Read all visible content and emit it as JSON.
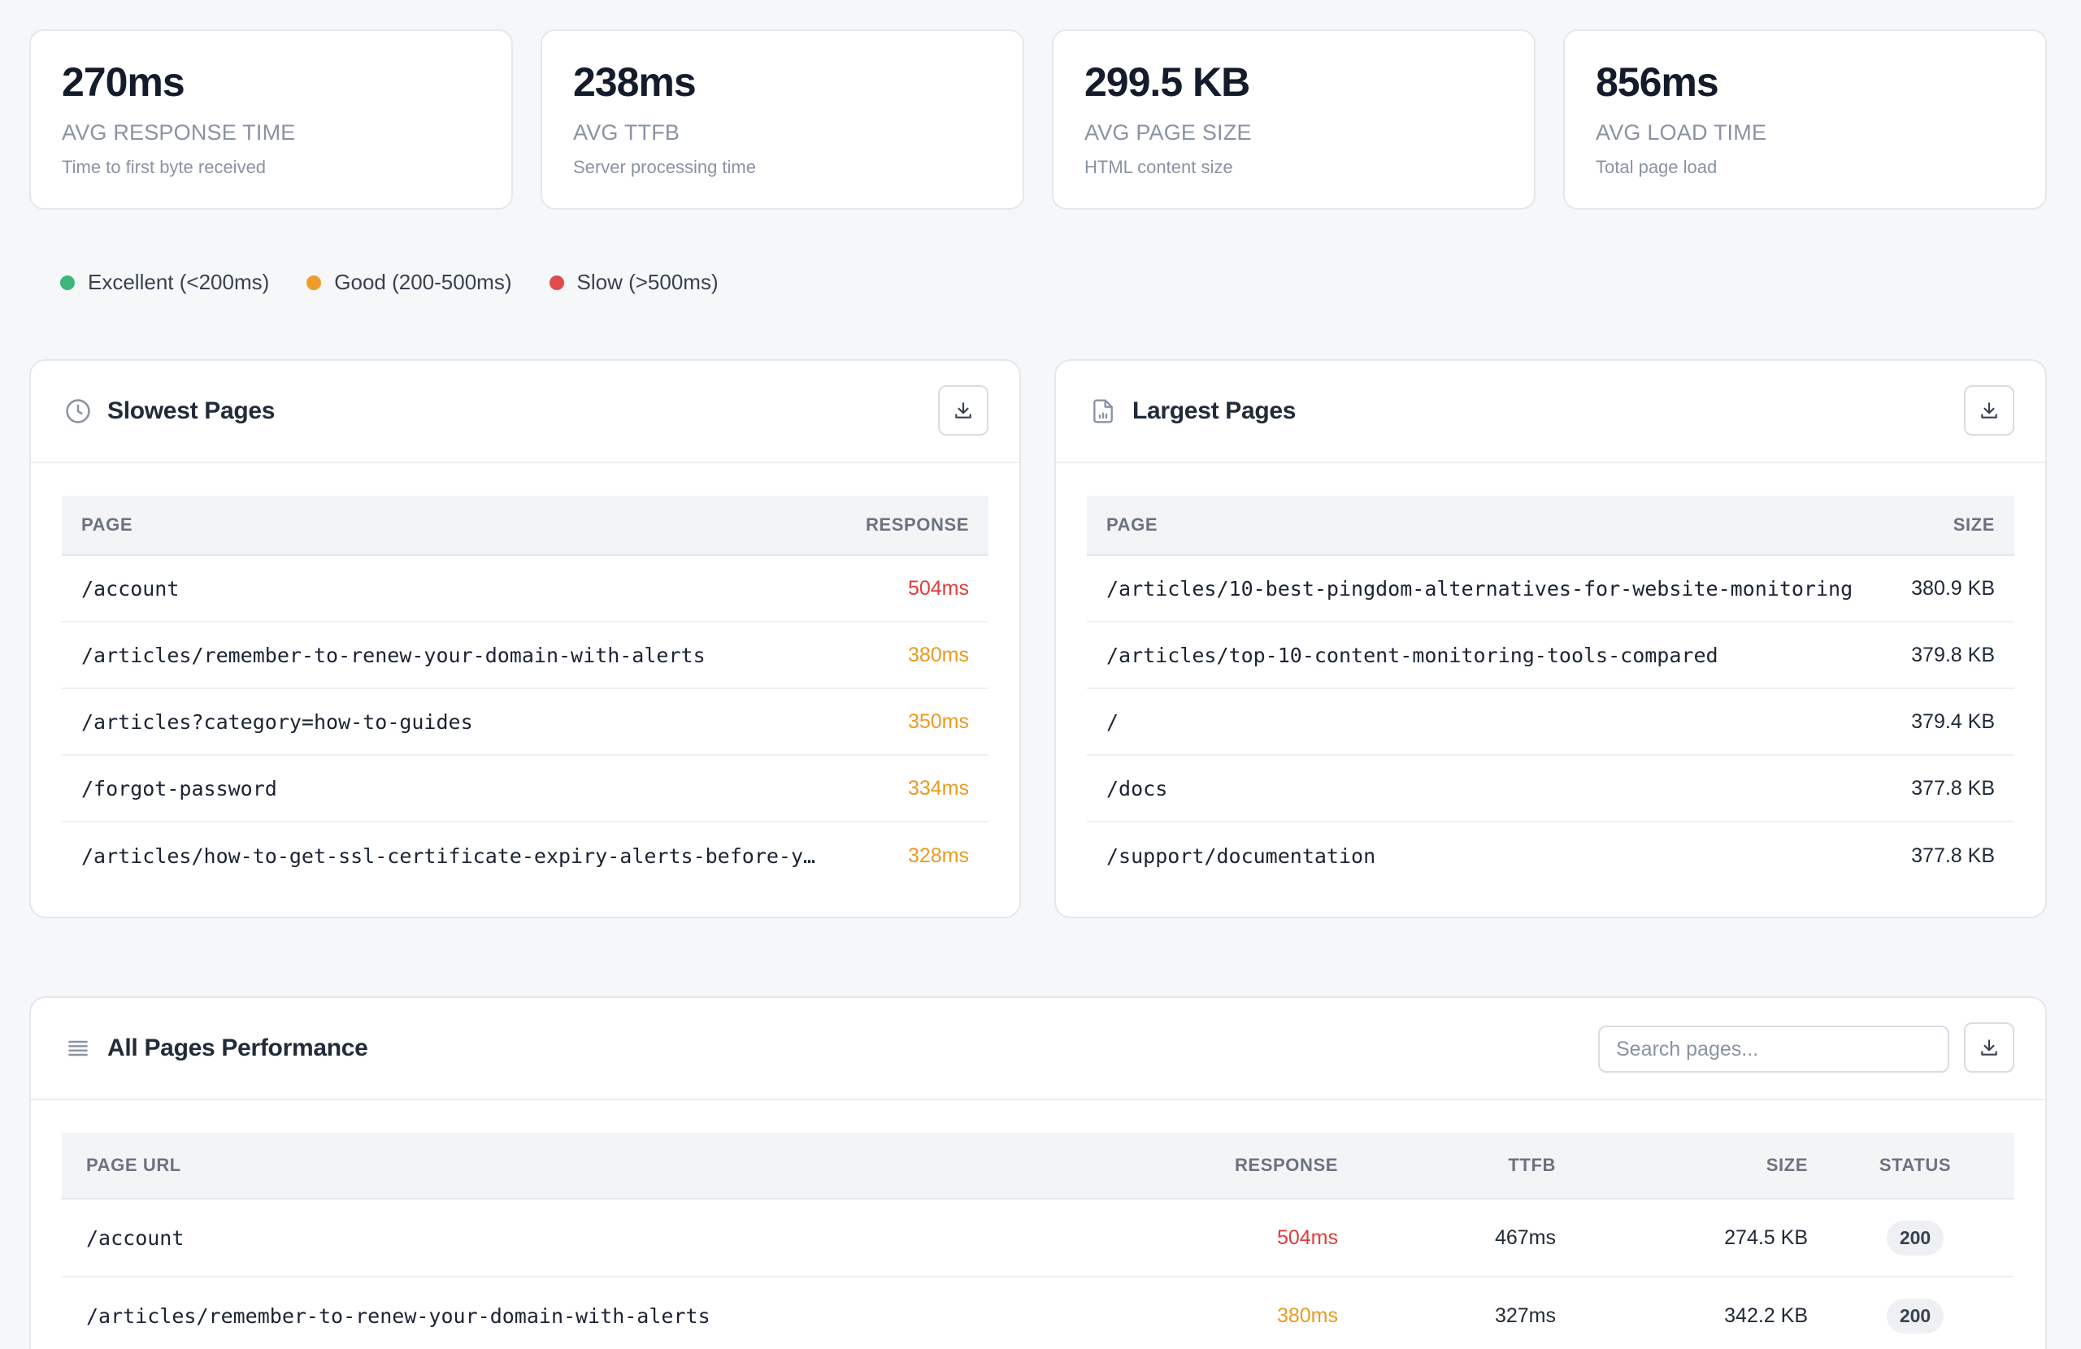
{
  "stats": [
    {
      "value": "270ms",
      "label": "AVG RESPONSE TIME",
      "desc": "Time to first byte received"
    },
    {
      "value": "238ms",
      "label": "AVG TTFB",
      "desc": "Server processing time"
    },
    {
      "value": "299.5 KB",
      "label": "AVG PAGE SIZE",
      "desc": "HTML content size"
    },
    {
      "value": "856ms",
      "label": "AVG LOAD TIME",
      "desc": "Total page load"
    }
  ],
  "legend": [
    {
      "label": "Excellent (<200ms)",
      "color": "#3fb67b"
    },
    {
      "label": "Good (200-500ms)",
      "color": "#ef9d2a"
    },
    {
      "label": "Slow (>500ms)",
      "color": "#e14b4b"
    }
  ],
  "slowest": {
    "title": "Slowest Pages",
    "headers": {
      "page": "PAGE",
      "value": "RESPONSE"
    },
    "rows": [
      {
        "page": "/account",
        "value": "504ms",
        "tone": "red"
      },
      {
        "page": "/articles/remember-to-renew-your-domain-with-alerts",
        "value": "380ms",
        "tone": "orange"
      },
      {
        "page": "/articles?category=how-to-guides",
        "value": "350ms",
        "tone": "orange"
      },
      {
        "page": "/forgot-password",
        "value": "334ms",
        "tone": "orange"
      },
      {
        "page": "/articles/how-to-get-ssl-certificate-expiry-alerts-before-y…",
        "value": "328ms",
        "tone": "orange"
      }
    ]
  },
  "largest": {
    "title": "Largest Pages",
    "headers": {
      "page": "PAGE",
      "value": "SIZE"
    },
    "rows": [
      {
        "page": "/articles/10-best-pingdom-alternatives-for-website-monitoring",
        "value": "380.9 KB"
      },
      {
        "page": "/articles/top-10-content-monitoring-tools-compared",
        "value": "379.8 KB"
      },
      {
        "page": "/",
        "value": "379.4 KB"
      },
      {
        "page": "/docs",
        "value": "377.8 KB"
      },
      {
        "page": "/support/documentation",
        "value": "377.8 KB"
      }
    ]
  },
  "all_pages": {
    "title": "All Pages Performance",
    "search_placeholder": "Search pages...",
    "headers": {
      "url": "PAGE URL",
      "response": "RESPONSE",
      "ttfb": "TTFB",
      "size": "SIZE",
      "status": "STATUS"
    },
    "rows": [
      {
        "url": "/account",
        "response": "504ms",
        "tone": "red",
        "ttfb": "467ms",
        "size": "274.5 KB",
        "status": "200"
      },
      {
        "url": "/articles/remember-to-renew-your-domain-with-alerts",
        "response": "380ms",
        "tone": "orange",
        "ttfb": "327ms",
        "size": "342.2 KB",
        "status": "200"
      }
    ]
  }
}
